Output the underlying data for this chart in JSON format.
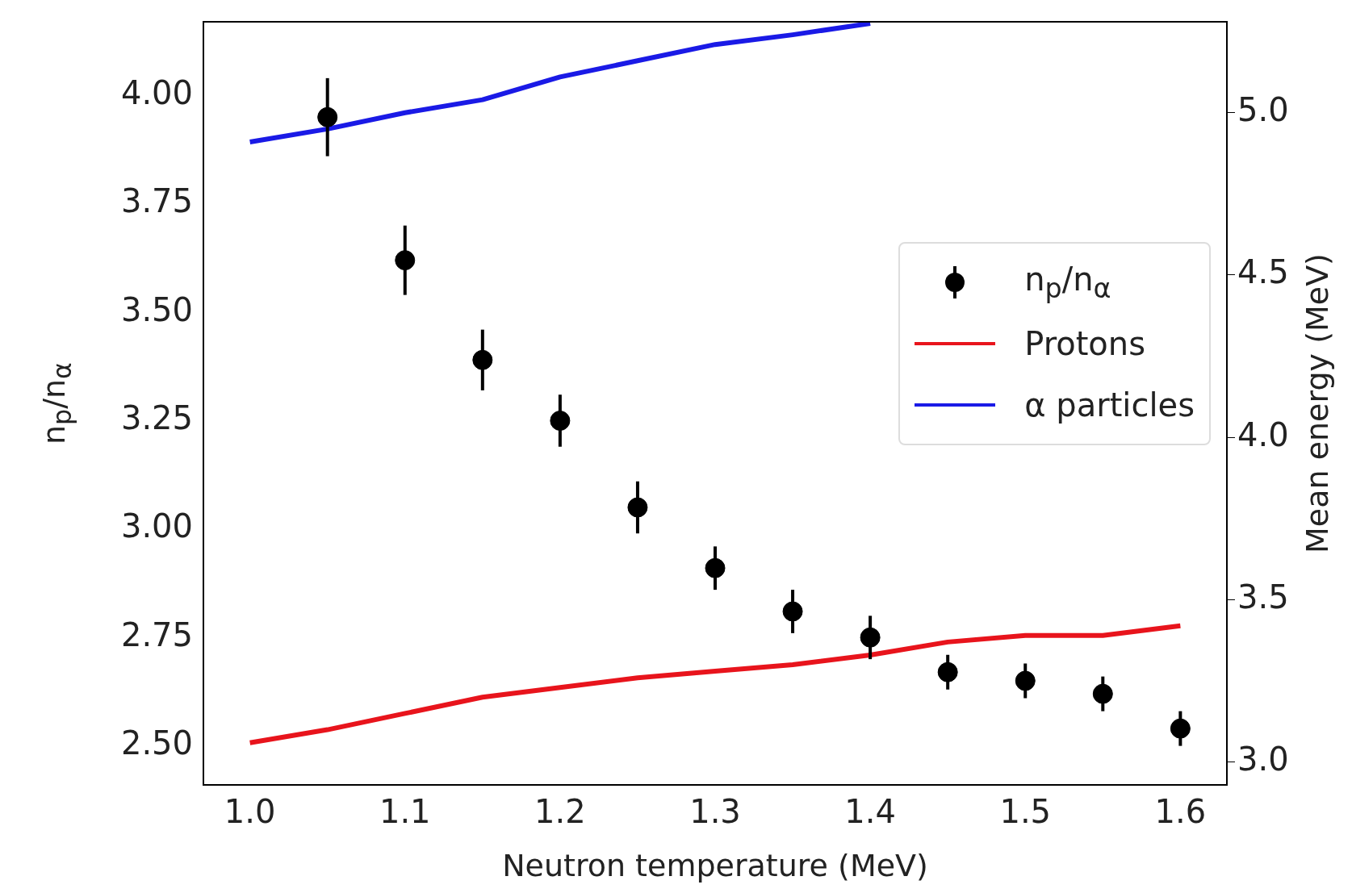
{
  "chart_data": {
    "type": "scatter",
    "xlabel": "Neutron temperature (MeV)",
    "ylabel": "n$_{p}$/n$_{α}$",
    "y2label": "Mean energy (MeV)",
    "x": [
      1.0,
      1.05,
      1.1,
      1.15,
      1.2,
      1.25,
      1.3,
      1.35,
      1.4,
      1.45,
      1.5,
      1.55,
      1.6
    ],
    "xlim": [
      0.97,
      1.63
    ],
    "xticks": [
      {
        "value": 1,
        "label": "1.0"
      },
      1.1,
      1.2,
      1.3,
      1.4,
      1.5,
      1.6
    ],
    "ylim": [
      2.41,
      4.17
    ],
    "yticks": [
      {
        "value": 2.5,
        "label": "2.50"
      },
      {
        "value": 2.75,
        "label": "2.75"
      },
      {
        "value": 3,
        "label": "3.00"
      },
      {
        "value": 3.25,
        "label": "3.25"
      },
      {
        "value": 3.5,
        "label": "3.50"
      },
      {
        "value": 3.75,
        "label": "3.75"
      },
      {
        "value": 4,
        "label": "4.00"
      }
    ],
    "y2lim": [
      2.93,
      5.28
    ],
    "y2ticks": [
      {
        "value": 3,
        "label": "3.0"
      },
      {
        "value": 3.5,
        "label": "3.5"
      },
      {
        "value": 4,
        "label": "4.0"
      },
      {
        "value": 4.5,
        "label": "4.5"
      },
      {
        "value": 5,
        "label": "5.0"
      }
    ],
    "legend": "right",
    "series": [
      {
        "name": "n$_{p}$/n$_{α}$",
        "marker": "circle",
        "color": "#000000",
        "values": [
          null,
          3.95,
          3.62,
          3.39,
          3.25,
          3.05,
          2.91,
          2.81,
          2.75,
          2.67,
          2.65,
          2.62,
          2.54
        ],
        "errors": [
          null,
          0.09,
          0.08,
          0.07,
          0.06,
          0.06,
          0.05,
          0.05,
          0.05,
          0.04,
          0.04,
          0.04,
          0.04
        ]
      },
      {
        "type": "line",
        "name": "Protons",
        "color": "#e8141c",
        "axis": "y2",
        "values": [
          3.06,
          3.1,
          3.15,
          3.2,
          3.23,
          3.26,
          3.28,
          3.3,
          3.33,
          3.37,
          3.39,
          3.39,
          3.42
        ]
      },
      {
        "type": "line",
        "name": "α particles",
        "color": "#1a1ae6",
        "axis": "y2",
        "values": [
          4.91,
          4.95,
          5.0,
          5.04,
          5.11,
          5.16,
          5.21,
          5.24,
          5.275,
          null,
          null,
          null,
          null
        ]
      }
    ]
  }
}
